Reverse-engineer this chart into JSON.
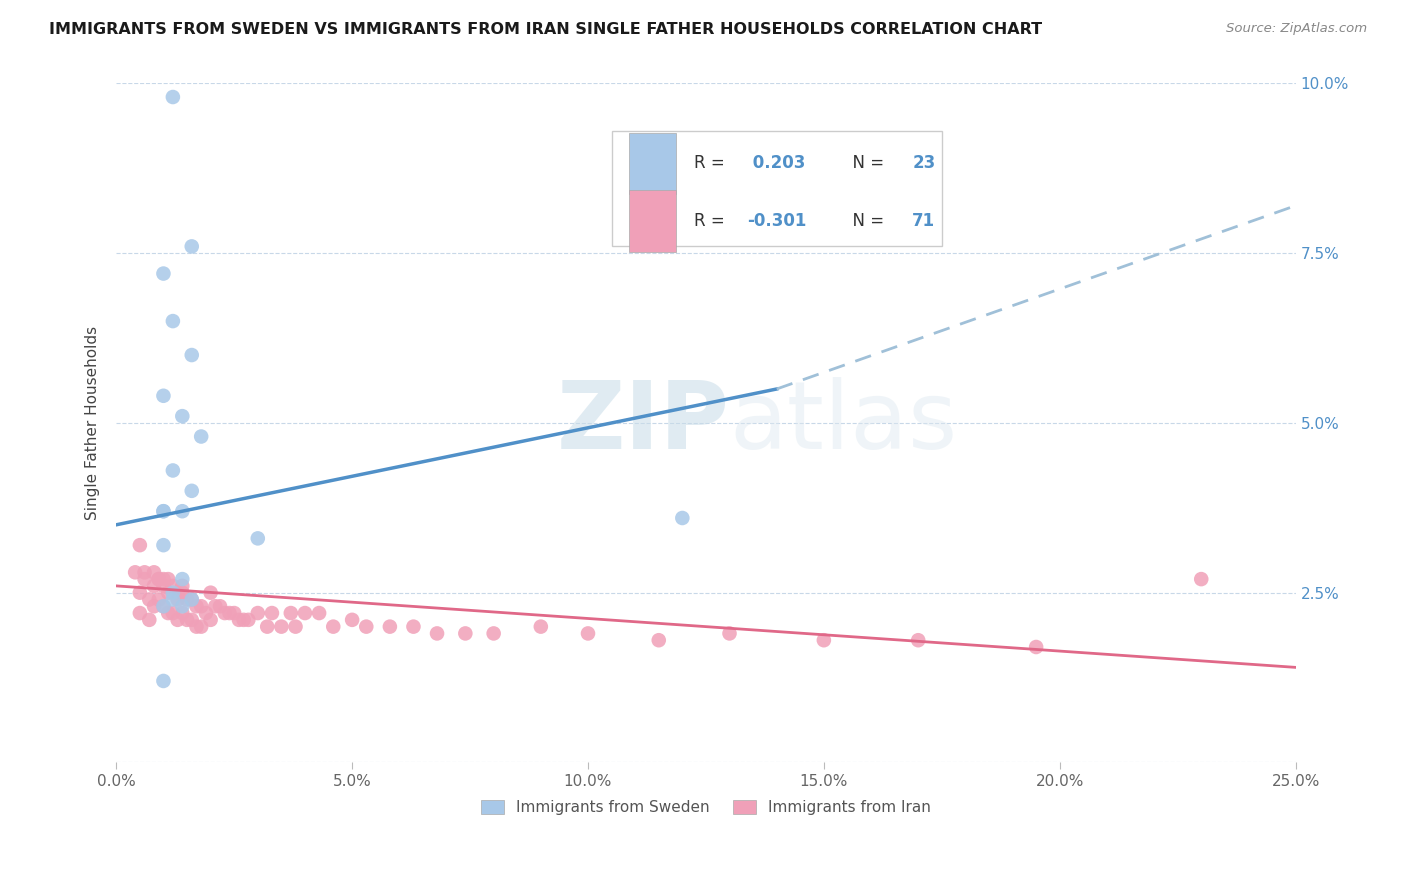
{
  "title": "IMMIGRANTS FROM SWEDEN VS IMMIGRANTS FROM IRAN SINGLE FATHER HOUSEHOLDS CORRELATION CHART",
  "source": "Source: ZipAtlas.com",
  "ylabel": "Single Father Households",
  "xlim": [
    0.0,
    0.25
  ],
  "ylim": [
    0.0,
    0.1
  ],
  "sweden_color": "#a8c8e8",
  "iran_color": "#f0a0b8",
  "sweden_line_color": "#5090c8",
  "iran_line_color": "#e06888",
  "dashed_line_color": "#a0c0d8",
  "watermark_zip": "ZIP",
  "watermark_atlas": "atlas",
  "sweden_x": [
    0.012,
    0.016,
    0.01,
    0.012,
    0.016,
    0.01,
    0.014,
    0.018,
    0.012,
    0.016,
    0.01,
    0.014,
    0.03,
    0.01,
    0.014,
    0.012,
    0.016,
    0.01,
    0.014,
    0.01,
    0.012,
    0.12,
    0.01
  ],
  "sweden_y": [
    0.098,
    0.076,
    0.072,
    0.065,
    0.06,
    0.054,
    0.051,
    0.048,
    0.043,
    0.04,
    0.037,
    0.037,
    0.033,
    0.032,
    0.027,
    0.025,
    0.024,
    0.023,
    0.023,
    0.037,
    0.024,
    0.036,
    0.012
  ],
  "iran_x": [
    0.004,
    0.005,
    0.005,
    0.006,
    0.007,
    0.007,
    0.008,
    0.008,
    0.009,
    0.009,
    0.01,
    0.01,
    0.011,
    0.011,
    0.012,
    0.012,
    0.013,
    0.013,
    0.014,
    0.014,
    0.015,
    0.015,
    0.016,
    0.016,
    0.017,
    0.017,
    0.018,
    0.018,
    0.019,
    0.02,
    0.02,
    0.021,
    0.022,
    0.023,
    0.024,
    0.025,
    0.026,
    0.027,
    0.028,
    0.03,
    0.032,
    0.033,
    0.035,
    0.037,
    0.038,
    0.04,
    0.043,
    0.046,
    0.05,
    0.053,
    0.058,
    0.063,
    0.068,
    0.074,
    0.08,
    0.09,
    0.1,
    0.115,
    0.13,
    0.15,
    0.17,
    0.195,
    0.005,
    0.006,
    0.008,
    0.009,
    0.01,
    0.011,
    0.013,
    0.014,
    0.23
  ],
  "iran_y": [
    0.028,
    0.025,
    0.022,
    0.027,
    0.024,
    0.021,
    0.026,
    0.023,
    0.027,
    0.024,
    0.026,
    0.023,
    0.025,
    0.022,
    0.026,
    0.022,
    0.024,
    0.021,
    0.025,
    0.022,
    0.024,
    0.021,
    0.024,
    0.021,
    0.023,
    0.02,
    0.023,
    0.02,
    0.022,
    0.025,
    0.021,
    0.023,
    0.023,
    0.022,
    0.022,
    0.022,
    0.021,
    0.021,
    0.021,
    0.022,
    0.02,
    0.022,
    0.02,
    0.022,
    0.02,
    0.022,
    0.022,
    0.02,
    0.021,
    0.02,
    0.02,
    0.02,
    0.019,
    0.019,
    0.019,
    0.02,
    0.019,
    0.018,
    0.019,
    0.018,
    0.018,
    0.017,
    0.032,
    0.028,
    0.028,
    0.027,
    0.027,
    0.027,
    0.025,
    0.026,
    0.027
  ],
  "legend_r1": "R = ",
  "legend_v1": " 0.203",
  "legend_n1_label": "N = ",
  "legend_n1": "23",
  "legend_r2": "R = ",
  "legend_v2": "-0.301",
  "legend_n2_label": "N = ",
  "legend_n2": "71"
}
